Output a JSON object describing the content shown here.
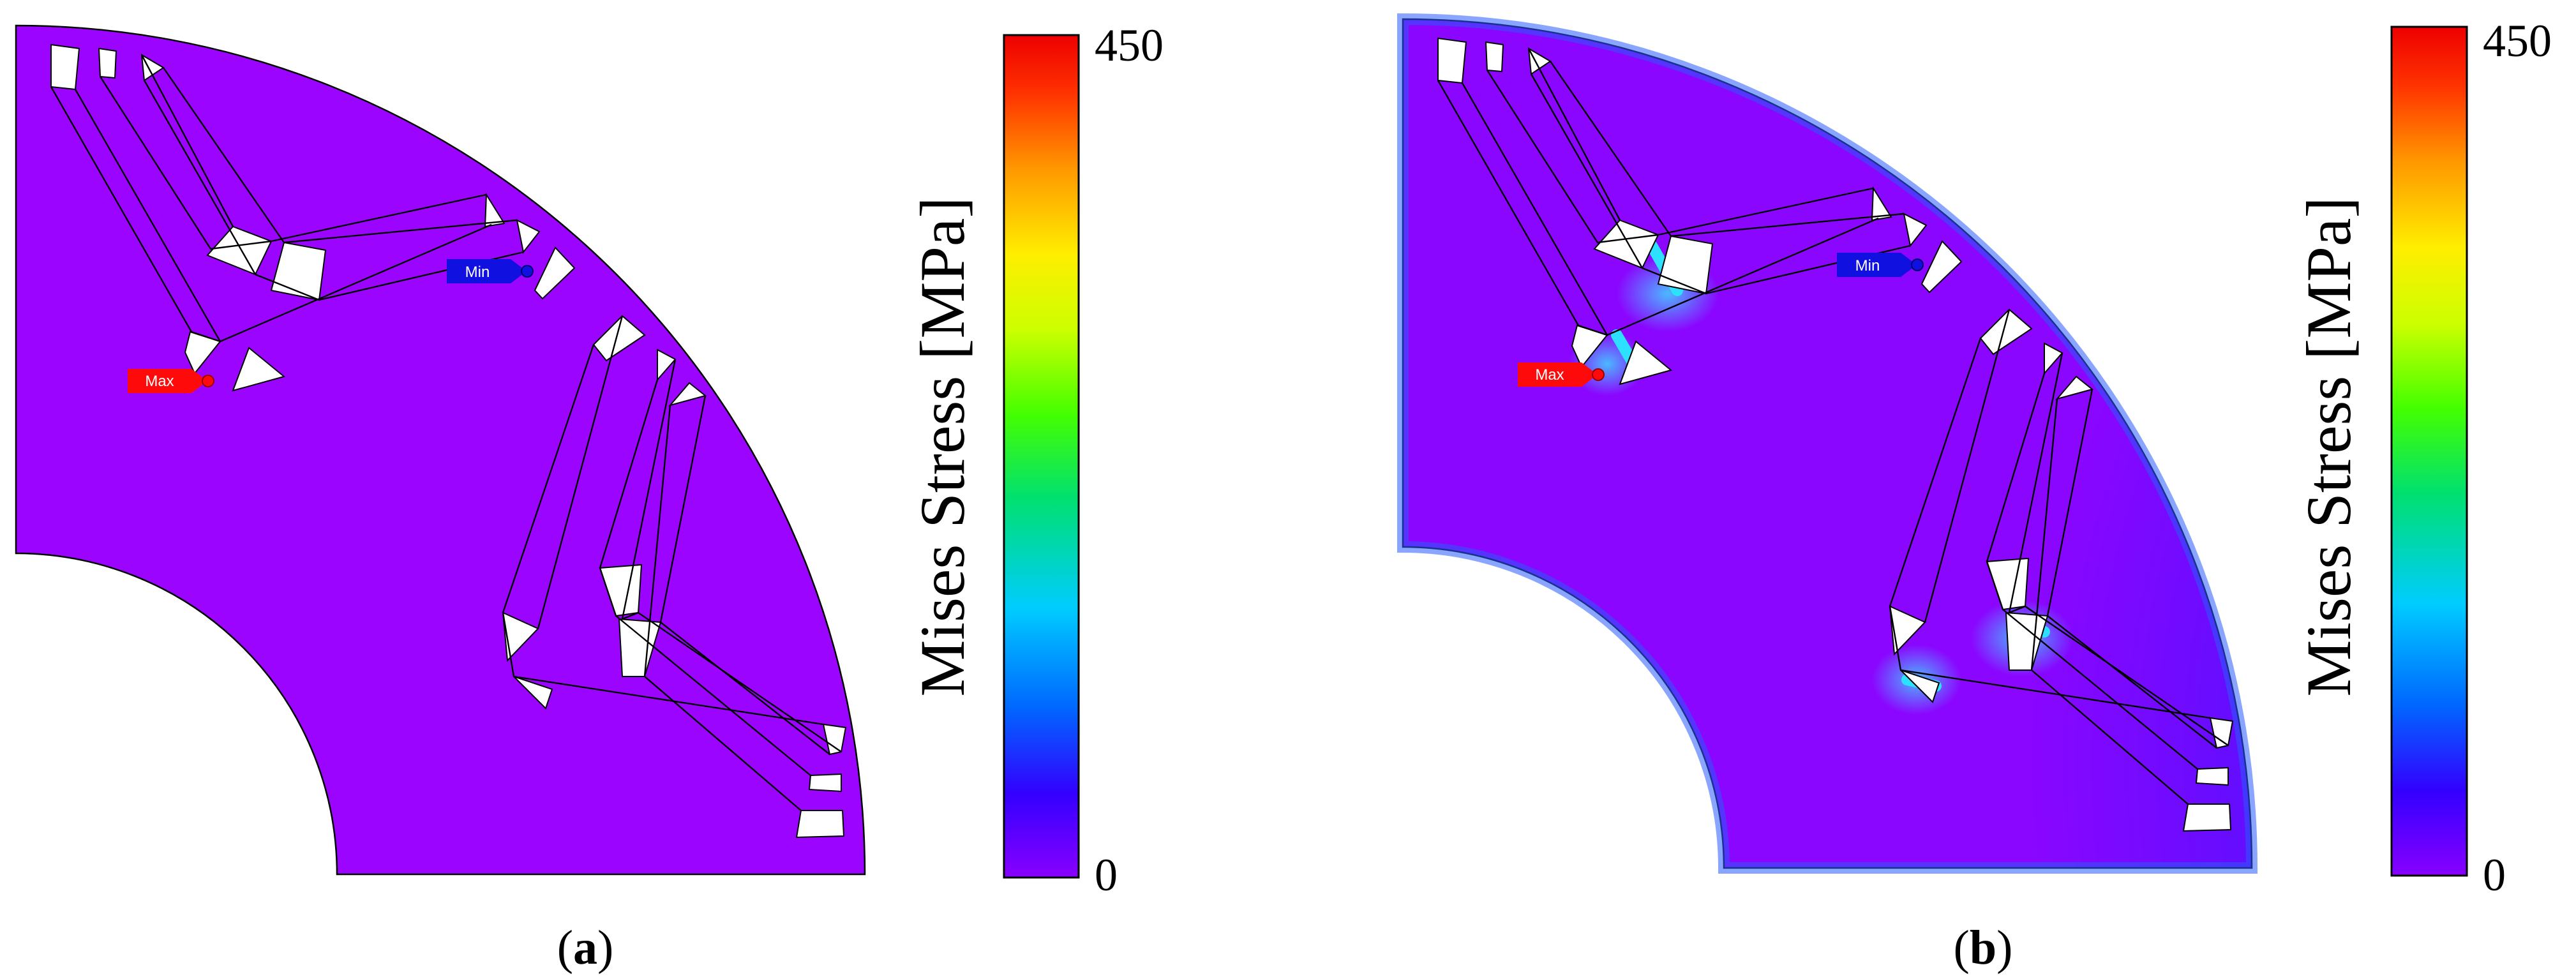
{
  "panels": [
    {
      "id": "a",
      "caption_open": "(",
      "caption_letter": "a",
      "caption_close": ")",
      "max_label": "Max",
      "min_label": "Min",
      "colorbar": {
        "title": "Mises Stress [MPa]",
        "max_label": "450",
        "min_label": "0"
      }
    },
    {
      "id": "b",
      "caption_open": "(",
      "caption_letter": "b",
      "caption_close": ")",
      "max_label": "Max",
      "min_label": "Min",
      "colorbar": {
        "title": "Mises Stress [MPa]",
        "max_label": "450",
        "min_label": "0"
      }
    }
  ],
  "colors": {
    "uniform_stress": "#9b05ff",
    "low_stress": "#2a12ff",
    "bridge_stress": "#22c8ff",
    "max_marker": "#ff0a0a",
    "min_marker": "#1010e0",
    "hole": "#ffffff",
    "outline": "#000000"
  },
  "colormap": [
    "#8800ff",
    "#3300ff",
    "#0066ff",
    "#00ccff",
    "#00e070",
    "#44ff00",
    "#ccff00",
    "#ffee00",
    "#ff9900",
    "#ff3300",
    "#ee0000"
  ]
}
